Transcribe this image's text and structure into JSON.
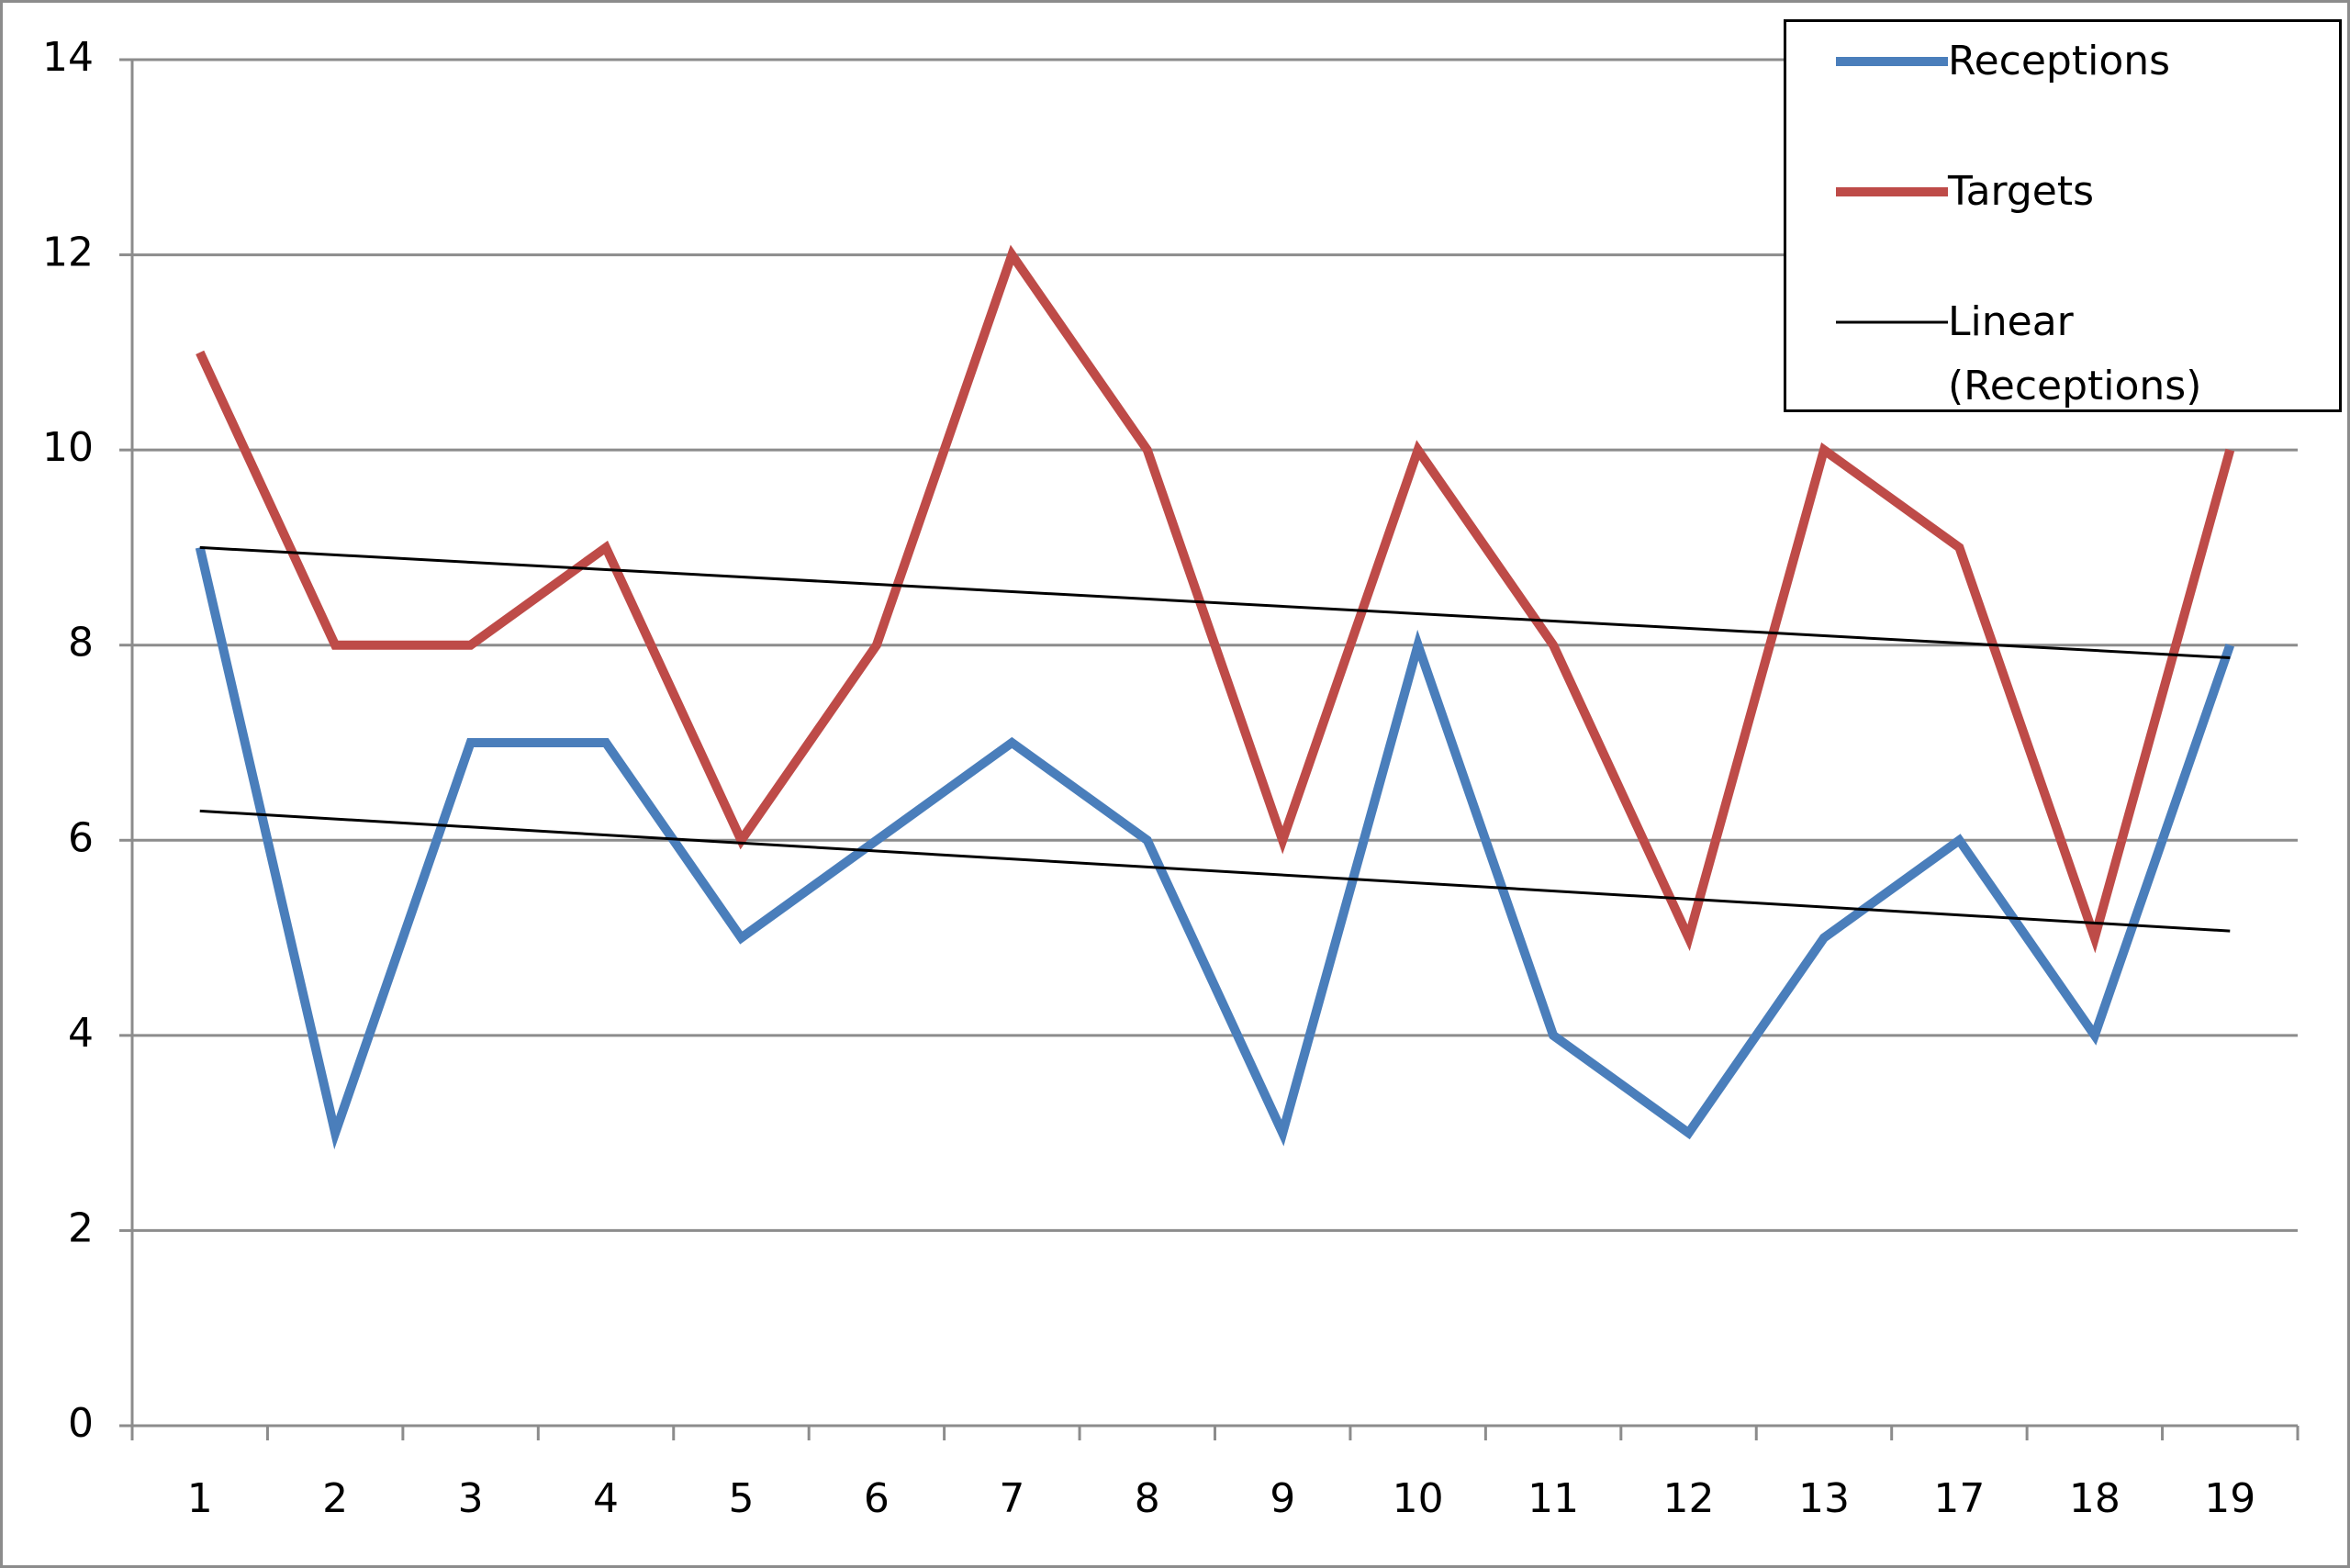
{
  "chart_data": {
    "type": "line",
    "categories": [
      "1",
      "2",
      "3",
      "4",
      "5",
      "6",
      "7",
      "8",
      "9",
      "10",
      "11",
      "12",
      "13",
      "17",
      "18",
      "19"
    ],
    "series": [
      {
        "name": "Receptions",
        "color": "#4a7ebb",
        "values": [
          9,
          3,
          7,
          7,
          5,
          6,
          7,
          6,
          3,
          8,
          4,
          3,
          5,
          6,
          4,
          8
        ]
      },
      {
        "name": "Targets",
        "color": "#be4b48",
        "values": [
          11,
          8,
          8,
          9,
          6,
          8,
          12,
          10,
          6,
          10,
          8,
          5,
          10,
          9,
          5,
          10
        ]
      }
    ],
    "trendlines": [
      {
        "name": "Linear (Receptions)",
        "color": "#000000",
        "start": 6.3,
        "end": 5.07
      },
      {
        "color": "#000000",
        "start": 9.0,
        "end": 7.87
      }
    ],
    "ylim": [
      0,
      14
    ],
    "yticks": [
      0,
      2,
      4,
      6,
      8,
      10,
      12,
      14
    ],
    "grid": true,
    "legend": "top-right"
  }
}
